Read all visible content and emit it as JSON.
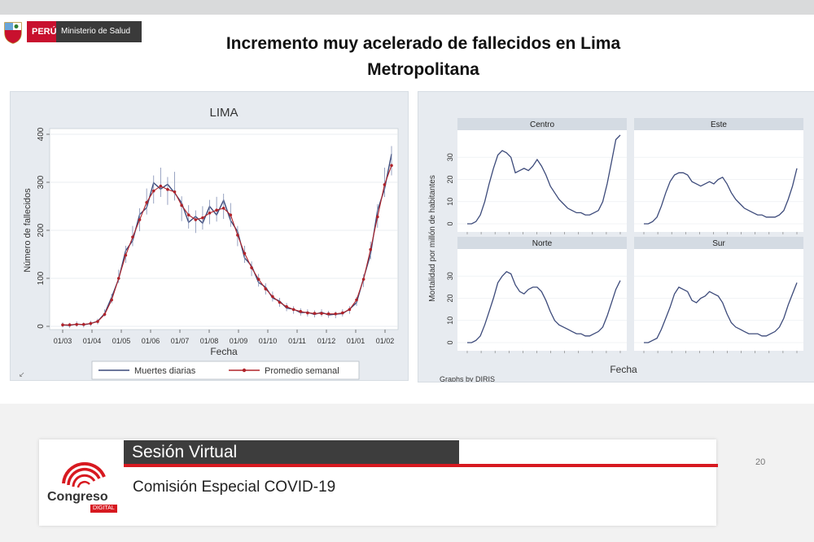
{
  "header": {
    "country": "PERÚ",
    "ministry": "Ministerio de Salud",
    "title_line1": "Incremento muy acelerado de fallecidos en Lima",
    "title_line2": "Metropolitana"
  },
  "colors": {
    "accent_red": "#d71920",
    "dark_bar": "#3d3d3d",
    "panel_bg": "#e7ebf0",
    "line_blue": "#3c4a7a",
    "avg_red": "#b0232a"
  },
  "chart_data": [
    {
      "type": "line",
      "title": "LIMA",
      "xlabel": "Fecha",
      "ylabel": "Número de fallecidos",
      "x_ticks": [
        "01/03",
        "01/04",
        "01/05",
        "01/06",
        "01/07",
        "01/08",
        "01/09",
        "01/10",
        "01/11",
        "01/12",
        "01/01",
        "01/02"
      ],
      "y_ticks": [
        "0",
        "100",
        "200",
        "300",
        "400"
      ],
      "ylim": [
        0,
        400
      ],
      "legend": {
        "position": "bottom",
        "entries": [
          "Muertes diarias",
          "Promedio semanal"
        ]
      },
      "series": [
        {
          "name": "Muertes diarias",
          "color": "#3c4a7a",
          "values": [
            3,
            2,
            5,
            3,
            6,
            10,
            28,
            58,
            104,
            150,
            188,
            222,
            260,
            285,
            300,
            282,
            292,
            245,
            228,
            218,
            226,
            238,
            244,
            250,
            232,
            188,
            150,
            120,
            96,
            78,
            62,
            50,
            40,
            34,
            30,
            28,
            26,
            28,
            25,
            24,
            28,
            34,
            52,
            95,
            158,
            230,
            300,
            345
          ]
        },
        {
          "name": "Promedio semanal",
          "color": "#b0232a",
          "values": [
            3,
            3,
            4,
            4,
            6,
            10,
            25,
            55,
            100,
            148,
            186,
            222,
            258,
            282,
            292,
            285,
            280,
            252,
            232,
            222,
            226,
            236,
            242,
            246,
            232,
            190,
            152,
            122,
            98,
            78,
            62,
            50,
            41,
            35,
            31,
            28,
            27,
            27,
            26,
            26,
            28,
            35,
            55,
            98,
            160,
            228,
            295,
            335
          ]
        }
      ]
    },
    {
      "type": "line",
      "ylabel": "Mortalidad por millón de habitantes",
      "xlabel": "Fecha",
      "note": "Graphs by DIRIS",
      "y_ticks": [
        "0",
        "10",
        "20",
        "30"
      ],
      "ylim": [
        0,
        40
      ],
      "panels": [
        {
          "name": "Centro",
          "values": [
            0,
            0,
            1,
            4,
            10,
            18,
            25,
            31,
            33,
            32,
            30,
            23,
            24,
            25,
            24,
            26,
            29,
            26,
            22,
            17,
            14,
            11,
            9,
            7,
            6,
            5,
            5,
            4,
            4,
            5,
            6,
            10,
            18,
            28,
            38,
            40
          ]
        },
        {
          "name": "Este",
          "values": [
            0,
            0,
            1,
            3,
            8,
            14,
            19,
            22,
            23,
            23,
            22,
            19,
            18,
            17,
            18,
            19,
            18,
            20,
            21,
            18,
            14,
            11,
            9,
            7,
            6,
            5,
            4,
            4,
            3,
            3,
            3,
            4,
            6,
            11,
            17,
            25
          ]
        },
        {
          "name": "Norte",
          "values": [
            0,
            0,
            1,
            3,
            8,
            14,
            20,
            27,
            30,
            32,
            31,
            26,
            23,
            22,
            24,
            25,
            25,
            23,
            19,
            14,
            10,
            8,
            7,
            6,
            5,
            4,
            4,
            3,
            3,
            4,
            5,
            7,
            12,
            18,
            24,
            28
          ]
        },
        {
          "name": "Sur",
          "values": [
            0,
            0,
            1,
            2,
            6,
            11,
            16,
            22,
            25,
            24,
            23,
            19,
            18,
            20,
            21,
            23,
            22,
            21,
            18,
            13,
            9,
            7,
            6,
            5,
            4,
            4,
            4,
            3,
            3,
            4,
            5,
            7,
            11,
            17,
            22,
            27
          ]
        }
      ]
    }
  ],
  "footer": {
    "session": "Sesión Virtual",
    "commission": "Comisión Especial COVID-19",
    "page_number": "20",
    "brand": "Congreso",
    "brand_sub": "DIGITAL"
  }
}
